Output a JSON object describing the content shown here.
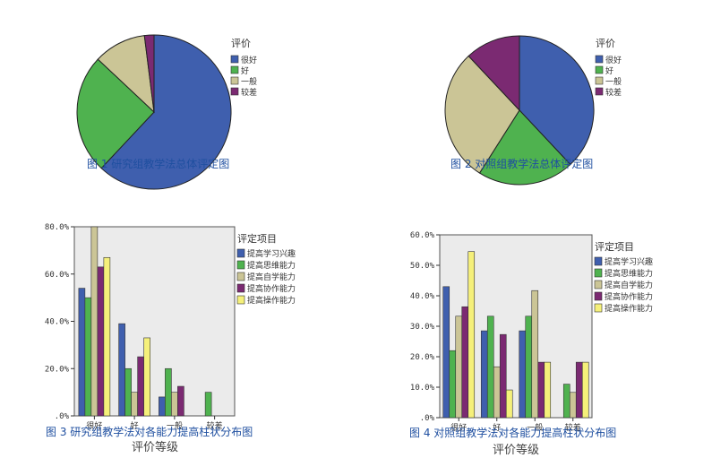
{
  "colors": {
    "很好": "#3f5fae",
    "好": "#4fb24f",
    "一般": "#cbc596",
    "较差": "#7b2a72",
    "提高学习兴趣": "#3f5fae",
    "提高思维能力": "#4fb24f",
    "提高自学能力": "#cbc596",
    "提高协作能力": "#7b2a72",
    "提高操作能力": "#f5f07a"
  },
  "chart_data": [
    {
      "type": "pie",
      "caption": "图 1 研究组教学法总体评定图",
      "legend_title": "评价",
      "legend_placement": "right",
      "categories": [
        "很好",
        "好",
        "一般",
        "较差"
      ],
      "values": [
        62,
        25,
        11,
        2
      ]
    },
    {
      "type": "pie",
      "caption": "图 2 对照组教学法总体评定图",
      "legend_title": "评价",
      "legend_placement": "right",
      "categories": [
        "很好",
        "好",
        "一般",
        "较差"
      ],
      "values": [
        38,
        21,
        29,
        12
      ]
    },
    {
      "type": "bar",
      "caption": "图 3 研究组教学法对各能力提高柱状分布图",
      "legend_title": "评定项目",
      "legend_placement": "right",
      "xlabel": "评价等级",
      "categories": [
        "很好",
        "好",
        "一般",
        "较差"
      ],
      "ylim": [
        0,
        80
      ],
      "yticks": [
        "80.0%",
        "60.0%",
        "40.0%",
        "20.0%",
        ".0%"
      ],
      "grid": false,
      "series": [
        {
          "name": "提高学习兴趣",
          "values": [
            54,
            39,
            8,
            0
          ]
        },
        {
          "name": "提高思维能力",
          "values": [
            50,
            20,
            20,
            10
          ]
        },
        {
          "name": "提高自学能力",
          "values": [
            80,
            10,
            10,
            0
          ]
        },
        {
          "name": "提高协作能力",
          "values": [
            63,
            25,
            12.5,
            0
          ]
        },
        {
          "name": "提高操作能力",
          "values": [
            67,
            33,
            0,
            0
          ]
        }
      ]
    },
    {
      "type": "bar",
      "caption": "图 4 对照组教学法对各能力提高柱状分布图",
      "legend_title": "评定项目",
      "legend_placement": "right",
      "xlabel": "评价等级",
      "categories": [
        "很好",
        "好",
        "一般",
        "较差"
      ],
      "ylim": [
        0,
        60
      ],
      "yticks": [
        "60.0%",
        "50.0%",
        "40.0%",
        "30.0%",
        "20.0%",
        "10.0%",
        ".0%"
      ],
      "grid": false,
      "series": [
        {
          "name": "提高学习兴趣",
          "values": [
            43,
            28.5,
            28.5,
            0
          ]
        },
        {
          "name": "提高思维能力",
          "values": [
            22,
            33.3,
            33.3,
            11
          ]
        },
        {
          "name": "提高自学能力",
          "values": [
            33.3,
            16.7,
            41.7,
            8.3
          ]
        },
        {
          "name": "提高协作能力",
          "values": [
            36.4,
            27.3,
            18.2,
            18.2
          ]
        },
        {
          "name": "提高操作能力",
          "values": [
            54.5,
            9.1,
            18.2,
            18.2
          ]
        }
      ]
    }
  ]
}
